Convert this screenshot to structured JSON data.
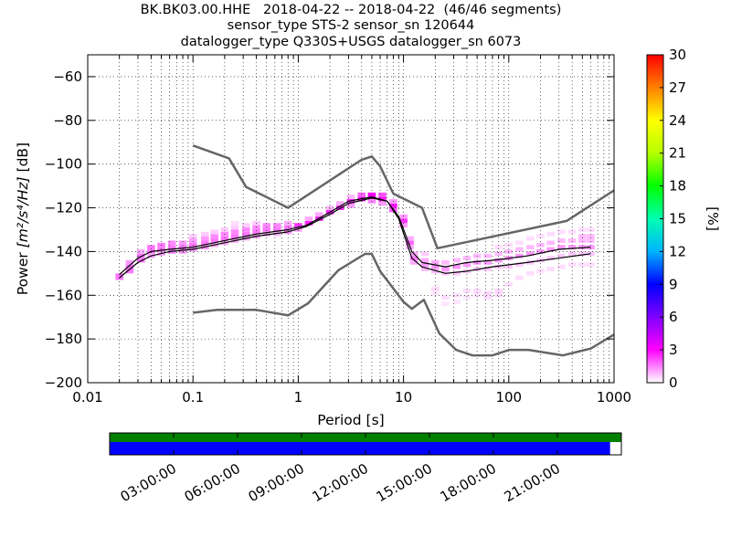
{
  "title": {
    "line1": "BK.BK03.00.HHE   2018-04-22 -- 2018-04-22  (46/46 segments)",
    "line2": "sensor_type STS-2 sensor_sn 120644",
    "line3": "datalogger_type Q330S+USGS datalogger_sn 6073"
  },
  "chart_data": {
    "type": "heatmap",
    "xlabel": "Period [s]",
    "ylabel_text": "Power",
    "ylabel_units": "m²/s⁴/Hz",
    "ylabel_db": "[dB]",
    "x_scale": "log",
    "xlim": [
      0.01,
      1000
    ],
    "ylim": [
      -200,
      -50
    ],
    "x_ticks": [
      {
        "value": 0.01,
        "label": "0.01"
      },
      {
        "value": 0.1,
        "label": "0.1"
      },
      {
        "value": 1,
        "label": "1"
      },
      {
        "value": 10,
        "label": "10"
      },
      {
        "value": 100,
        "label": "100"
      },
      {
        "value": 1000,
        "label": "1000"
      }
    ],
    "y_ticks": [
      {
        "value": -60,
        "label": "−60"
      },
      {
        "value": -80,
        "label": "−80"
      },
      {
        "value": -100,
        "label": "−100"
      },
      {
        "value": -120,
        "label": "−120"
      },
      {
        "value": -140,
        "label": "−140"
      },
      {
        "value": -160,
        "label": "−160"
      },
      {
        "value": -180,
        "label": "−180"
      },
      {
        "value": -200,
        "label": "−200"
      }
    ],
    "grid": true,
    "colorbar": {
      "label": "[%]",
      "range": [
        0,
        30
      ],
      "ticks": [
        {
          "value": 0,
          "label": "0"
        },
        {
          "value": 3,
          "label": "3"
        },
        {
          "value": 6,
          "label": "6"
        },
        {
          "value": 9,
          "label": "9"
        },
        {
          "value": 12,
          "label": "12"
        },
        {
          "value": 15,
          "label": "15"
        },
        {
          "value": 18,
          "label": "18"
        },
        {
          "value": 21,
          "label": "21"
        },
        {
          "value": 24,
          "label": "24"
        },
        {
          "value": 27,
          "label": "27"
        },
        {
          "value": 30,
          "label": "30"
        }
      ],
      "colors": [
        "#ffffff",
        "#ff00ff",
        "#8000ff",
        "#0000ff",
        "#00b4ff",
        "#00ffb0",
        "#00ff00",
        "#b4ff00",
        "#ffff00",
        "#ff8000",
        "#ff0000"
      ]
    },
    "new_high_noise_model": [
      [
        0.1,
        -91.5
      ],
      [
        0.22,
        -97.4
      ],
      [
        0.32,
        -110.5
      ],
      [
        0.8,
        -120
      ],
      [
        4,
        -98
      ],
      [
        5,
        -96.5
      ],
      [
        6,
        -101
      ],
      [
        8,
        -113.5
      ],
      [
        15,
        -120
      ],
      [
        21,
        -138.5
      ],
      [
        354.8,
        -126
      ],
      [
        1000,
        -112
      ]
    ],
    "new_low_noise_model": [
      [
        0.1,
        -168
      ],
      [
        0.17,
        -166.7
      ],
      [
        0.4,
        -166.7
      ],
      [
        0.8,
        -169.2
      ],
      [
        1.24,
        -163.7
      ],
      [
        2.4,
        -148.6
      ],
      [
        4.3,
        -141.1
      ],
      [
        5,
        -141.1
      ],
      [
        6,
        -149
      ],
      [
        10,
        -163
      ],
      [
        12,
        -166.2
      ],
      [
        15.6,
        -162.1
      ],
      [
        21.9,
        -177.5
      ],
      [
        31.6,
        -185
      ],
      [
        45,
        -187.5
      ],
      [
        70,
        -187.5
      ],
      [
        101,
        -185
      ],
      [
        154,
        -185
      ],
      [
        328,
        -187.5
      ],
      [
        600,
        -184.4
      ],
      [
        1000,
        -178
      ]
    ],
    "mode_line": [
      [
        0.02,
        -150.5
      ],
      [
        0.03,
        -143
      ],
      [
        0.04,
        -140
      ],
      [
        0.06,
        -139
      ],
      [
        0.1,
        -138
      ],
      [
        0.2,
        -135
      ],
      [
        0.4,
        -132
      ],
      [
        0.8,
        -130
      ],
      [
        1.2,
        -128
      ],
      [
        2,
        -122
      ],
      [
        3,
        -117
      ],
      [
        5,
        -115
      ],
      [
        7,
        -117
      ],
      [
        9,
        -124
      ],
      [
        12,
        -140
      ],
      [
        15,
        -145
      ],
      [
        25,
        -147
      ],
      [
        40,
        -145
      ],
      [
        70,
        -144
      ],
      [
        150,
        -142
      ],
      [
        300,
        -139
      ],
      [
        600,
        -138
      ]
    ],
    "mean_line": [
      [
        0.02,
        -152
      ],
      [
        0.03,
        -145
      ],
      [
        0.04,
        -142
      ],
      [
        0.06,
        -140
      ],
      [
        0.1,
        -139
      ],
      [
        0.2,
        -136
      ],
      [
        0.4,
        -133
      ],
      [
        0.8,
        -131
      ],
      [
        1.2,
        -128.5
      ],
      [
        2,
        -123
      ],
      [
        3,
        -118
      ],
      [
        5,
        -115.5
      ],
      [
        7,
        -117
      ],
      [
        9,
        -125
      ],
      [
        12,
        -143
      ],
      [
        15,
        -147
      ],
      [
        25,
        -150
      ],
      [
        40,
        -149
      ],
      [
        70,
        -147
      ],
      [
        150,
        -145
      ],
      [
        300,
        -143
      ],
      [
        600,
        -141
      ]
    ],
    "psd_hist": [
      [
        0.02,
        -151,
        0.016
      ],
      [
        0.02,
        -152,
        0.016
      ],
      [
        0.025,
        -147,
        0.016
      ],
      [
        0.025,
        -149,
        0.016
      ],
      [
        0.025,
        -145,
        0.012
      ],
      [
        0.032,
        -142,
        0.016
      ],
      [
        0.032,
        -144,
        0.016
      ],
      [
        0.032,
        -140,
        0.01
      ],
      [
        0.04,
        -140,
        0.016
      ],
      [
        0.04,
        -138,
        0.016
      ],
      [
        0.04,
        -142,
        0.01
      ],
      [
        0.05,
        -139,
        0.016
      ],
      [
        0.05,
        -137,
        0.016
      ],
      [
        0.05,
        -141,
        0.01
      ],
      [
        0.063,
        -138,
        0.016
      ],
      [
        0.063,
        -140,
        0.014
      ],
      [
        0.063,
        -136,
        0.014
      ],
      [
        0.08,
        -138,
        0.016
      ],
      [
        0.08,
        -136,
        0.012
      ],
      [
        0.08,
        -140,
        0.012
      ],
      [
        0.1,
        -137,
        0.016
      ],
      [
        0.1,
        -135,
        0.012
      ],
      [
        0.1,
        -139,
        0.012
      ],
      [
        0.1,
        -133,
        0.006
      ],
      [
        0.13,
        -136,
        0.016
      ],
      [
        0.13,
        -134,
        0.012
      ],
      [
        0.13,
        -138,
        0.012
      ],
      [
        0.13,
        -132,
        0.006
      ],
      [
        0.16,
        -135,
        0.016
      ],
      [
        0.16,
        -133,
        0.014
      ],
      [
        0.16,
        -137,
        0.01
      ],
      [
        0.16,
        -131,
        0.006
      ],
      [
        0.2,
        -134,
        0.016
      ],
      [
        0.2,
        -132,
        0.014
      ],
      [
        0.2,
        -136,
        0.01
      ],
      [
        0.2,
        -130,
        0.006
      ],
      [
        0.25,
        -133,
        0.016
      ],
      [
        0.25,
        -131,
        0.014
      ],
      [
        0.25,
        -135,
        0.01
      ],
      [
        0.25,
        -129,
        0.006
      ],
      [
        0.25,
        -127,
        0.004
      ],
      [
        0.32,
        -132,
        0.016
      ],
      [
        0.32,
        -130,
        0.014
      ],
      [
        0.32,
        -134,
        0.01
      ],
      [
        0.32,
        -128,
        0.006
      ],
      [
        0.4,
        -131,
        0.016
      ],
      [
        0.4,
        -129,
        0.014
      ],
      [
        0.4,
        -133,
        0.01
      ],
      [
        0.4,
        -127,
        0.006
      ],
      [
        0.5,
        -130,
        0.016
      ],
      [
        0.5,
        -128,
        0.014
      ],
      [
        0.5,
        -132,
        0.01
      ],
      [
        0.63,
        -130,
        0.016
      ],
      [
        0.63,
        -128,
        0.014
      ],
      [
        0.63,
        -132,
        0.008
      ],
      [
        0.8,
        -129,
        0.016
      ],
      [
        0.8,
        -131,
        0.012
      ],
      [
        0.8,
        -127,
        0.01
      ],
      [
        1,
        -128,
        0.024
      ],
      [
        1,
        -130,
        0.01
      ],
      [
        1.26,
        -127,
        0.026
      ],
      [
        1.26,
        -125,
        0.01
      ],
      [
        1.58,
        -125,
        0.026
      ],
      [
        1.58,
        -123,
        0.01
      ],
      [
        2,
        -122,
        0.026
      ],
      [
        2,
        -120,
        0.008
      ],
      [
        2.5,
        -120,
        0.026
      ],
      [
        2.5,
        -118,
        0.01
      ],
      [
        3.16,
        -117,
        0.026
      ],
      [
        3.16,
        -119,
        0.012
      ],
      [
        3.16,
        -115,
        0.008
      ],
      [
        4,
        -116,
        0.028
      ],
      [
        4,
        -114,
        0.018
      ],
      [
        5,
        -115,
        0.028
      ],
      [
        5,
        -114,
        0.03
      ],
      [
        5,
        -117,
        0.014
      ],
      [
        6.3,
        -116,
        0.028
      ],
      [
        6.3,
        -114,
        0.02
      ],
      [
        6.3,
        -118,
        0.012
      ],
      [
        8,
        -119,
        0.028
      ],
      [
        8,
        -121,
        0.02
      ],
      [
        8,
        -117,
        0.012
      ],
      [
        10,
        -126,
        0.024
      ],
      [
        10,
        -128,
        0.012
      ],
      [
        10,
        -124,
        0.012
      ],
      [
        11.5,
        -136,
        0.018
      ],
      [
        11.5,
        -138,
        0.01
      ],
      [
        11.5,
        -134,
        0.01
      ],
      [
        12.6,
        -143,
        0.016
      ],
      [
        12.6,
        -141,
        0.01
      ],
      [
        12.6,
        -145,
        0.01
      ],
      [
        16,
        -146,
        0.012
      ],
      [
        16,
        -144,
        0.01
      ],
      [
        16,
        -148,
        0.008
      ],
      [
        16,
        -141,
        0.006
      ],
      [
        20,
        -147,
        0.012
      ],
      [
        20,
        -145,
        0.01
      ],
      [
        20,
        -149,
        0.008
      ],
      [
        20,
        -157,
        0.004
      ],
      [
        20,
        -159,
        0.003
      ],
      [
        25,
        -148,
        0.012
      ],
      [
        25,
        -145,
        0.008
      ],
      [
        25,
        -150,
        0.006
      ],
      [
        25,
        -161,
        0.004
      ],
      [
        25,
        -164,
        0.003
      ],
      [
        32,
        -147,
        0.012
      ],
      [
        32,
        -144,
        0.008
      ],
      [
        32,
        -150,
        0.006
      ],
      [
        32,
        -160,
        0.004
      ],
      [
        32,
        -163,
        0.003
      ],
      [
        40,
        -146,
        0.012
      ],
      [
        40,
        -143,
        0.008
      ],
      [
        40,
        -149,
        0.006
      ],
      [
        40,
        -158,
        0.004
      ],
      [
        40,
        -161,
        0.003
      ],
      [
        50,
        -145,
        0.012
      ],
      [
        50,
        -142,
        0.008
      ],
      [
        50,
        -148,
        0.006
      ],
      [
        50,
        -158,
        0.004
      ],
      [
        50,
        -160,
        0.003
      ],
      [
        63,
        -145,
        0.012
      ],
      [
        63,
        -142,
        0.008
      ],
      [
        63,
        -148,
        0.006
      ],
      [
        63,
        -159,
        0.005
      ],
      [
        63,
        -161,
        0.004
      ],
      [
        80,
        -144,
        0.012
      ],
      [
        80,
        -141,
        0.008
      ],
      [
        80,
        -147,
        0.006
      ],
      [
        80,
        -158,
        0.005
      ],
      [
        80,
        -160,
        0.004
      ],
      [
        80,
        -138,
        0.004
      ],
      [
        100,
        -143,
        0.012
      ],
      [
        100,
        -140,
        0.008
      ],
      [
        100,
        -147,
        0.006
      ],
      [
        100,
        -155,
        0.004
      ],
      [
        100,
        -137,
        0.004
      ],
      [
        126,
        -142,
        0.012
      ],
      [
        126,
        -139,
        0.008
      ],
      [
        126,
        -146,
        0.006
      ],
      [
        126,
        -152,
        0.004
      ],
      [
        126,
        -136,
        0.004
      ],
      [
        160,
        -141,
        0.012
      ],
      [
        160,
        -138,
        0.008
      ],
      [
        160,
        -145,
        0.006
      ],
      [
        160,
        -150,
        0.004
      ],
      [
        160,
        -134,
        0.004
      ],
      [
        200,
        -140,
        0.012
      ],
      [
        200,
        -137,
        0.008
      ],
      [
        200,
        -144,
        0.006
      ],
      [
        200,
        -149,
        0.004
      ],
      [
        200,
        -133,
        0.004
      ],
      [
        250,
        -139,
        0.012
      ],
      [
        250,
        -136,
        0.008
      ],
      [
        250,
        -143,
        0.006
      ],
      [
        250,
        -148,
        0.004
      ],
      [
        250,
        -132,
        0.004
      ],
      [
        316,
        -138,
        0.012
      ],
      [
        316,
        -135,
        0.008
      ],
      [
        316,
        -142,
        0.006
      ],
      [
        316,
        -147,
        0.004
      ],
      [
        316,
        -131,
        0.004
      ],
      [
        400,
        -138,
        0.012
      ],
      [
        400,
        -135,
        0.008
      ],
      [
        400,
        -141,
        0.006
      ],
      [
        400,
        -146,
        0.004
      ],
      [
        400,
        -131,
        0.004
      ],
      [
        500,
        -138,
        0.012
      ],
      [
        500,
        -135,
        0.008
      ],
      [
        500,
        -141,
        0.006
      ],
      [
        500,
        -146,
        0.004
      ],
      [
        500,
        -130,
        0.004
      ],
      [
        500,
        -133,
        0.008
      ],
      [
        600,
        -138,
        0.012
      ],
      [
        600,
        -135,
        0.008
      ],
      [
        600,
        -141,
        0.006
      ],
      [
        600,
        -146,
        0.004
      ],
      [
        600,
        -130,
        0.004
      ],
      [
        600,
        -133,
        0.008
      ]
    ]
  },
  "time_coverage": {
    "tick_labels": [
      "03:00:00",
      "06:00:00",
      "09:00:00",
      "12:00:00",
      "15:00:00",
      "18:00:00",
      "21:00:00"
    ],
    "segments_fraction": 1.0,
    "data_fraction": 0.978,
    "colors": {
      "segments": "#008000",
      "data": "#0000ff"
    }
  }
}
